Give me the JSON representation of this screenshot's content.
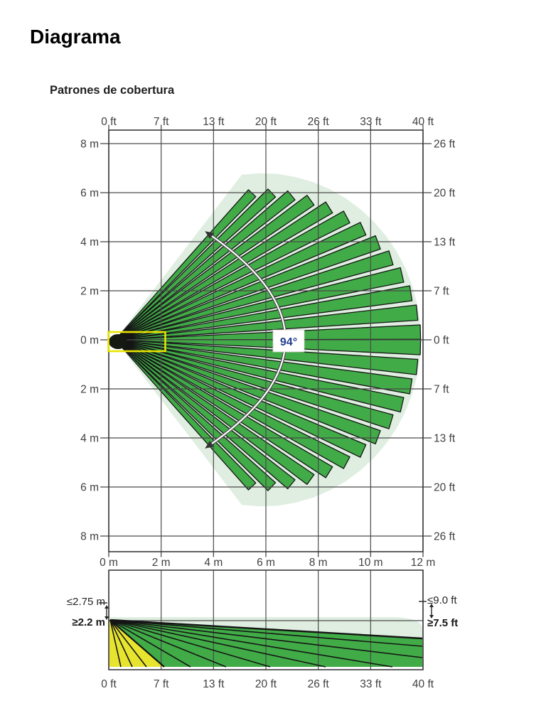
{
  "page": {
    "title": "Diagrama",
    "heading": "Patrones de cobertura"
  },
  "top_view": {
    "top_axis_ft": [
      "0 ft",
      "7 ft",
      "13 ft",
      "20 ft",
      "26 ft",
      "33 ft",
      "40 ft"
    ],
    "left_axis_m": [
      "8 m",
      "6 m",
      "4 m",
      "2 m",
      "0 m",
      "2 m",
      "4 m",
      "6 m",
      "8 m"
    ],
    "right_axis_ft": [
      "26 ft",
      "20 ft",
      "13 ft",
      "7 ft",
      "0 ft",
      "7 ft",
      "13 ft",
      "20 ft",
      "26 ft"
    ],
    "bottom_axis_m": [
      "0 m",
      "2 m",
      "4 m",
      "6 m",
      "8 m",
      "10 m",
      "12 m"
    ],
    "angle_label": "94°"
  },
  "side_view": {
    "bottom_axis_ft": [
      "0 ft",
      "7 ft",
      "13 ft",
      "20 ft",
      "26 ft",
      "33 ft",
      "40 ft"
    ],
    "mount_max_m": "≤2.75 m",
    "mount_min_m": "≥2.2 m",
    "mount_max_ft": "≤9.0 ft",
    "mount_min_ft": "≥7.5 ft"
  },
  "colors": {
    "beam_green": "#41ac47",
    "coverage_light": "#dfeee1",
    "creep_yellow": "#e7e42f",
    "detector_outline": "#e8e400",
    "beam_outline": "#151515",
    "grid_line": "#4a4a4a",
    "grid_border": "#3a3a3a",
    "angle_text": "#233d8f",
    "arc_dark": "#4a4a4a",
    "arc_light": "#ffffff"
  },
  "chart_data": {
    "type": "coverage-diagram",
    "title": "Patrones de cobertura",
    "views": [
      {
        "name": "top view",
        "x_axis_m": [
          0,
          2,
          4,
          6,
          8,
          10,
          12
        ],
        "x_axis_ft": [
          0,
          7,
          13,
          20,
          26,
          33,
          40
        ],
        "y_axis_m": [
          8,
          6,
          4,
          2,
          0,
          2,
          4,
          6,
          8
        ],
        "y_axis_ft": [
          26,
          20,
          13,
          7,
          0,
          7,
          13,
          20,
          26
        ],
        "fan_angle_deg": 94,
        "beams_per_side": 13,
        "max_range_m": 12,
        "max_range_ft": 40,
        "range_at_fan_edge_m": 7.7
      },
      {
        "name": "side view",
        "x_axis_ft": [
          0,
          7,
          13,
          20,
          26,
          33,
          40
        ],
        "mounting_height": {
          "max_m": 2.75,
          "min_m": 2.2,
          "max_ft": 9.0,
          "min_ft": 7.5
        },
        "creep_zone_max_ft": 7
      }
    ]
  }
}
